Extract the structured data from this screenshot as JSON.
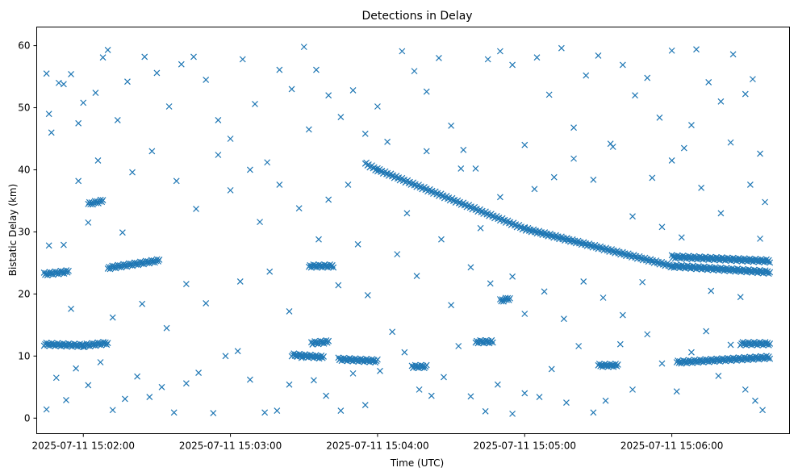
{
  "chart_data": {
    "type": "scatter",
    "title": "Detections in Delay",
    "xlabel": "Time (UTC)",
    "ylabel": "Bistatic Delay (km)",
    "x_type": "time",
    "xlim": [
      "2025-07-11 15:01:41",
      "2025-07-11 15:06:48"
    ],
    "ylim": [
      -2.5,
      63
    ],
    "x_ticks": [
      "2025-07-11 15:02:00",
      "2025-07-11 15:03:00",
      "2025-07-11 15:04:00",
      "2025-07-11 15:05:00",
      "2025-07-11 15:06:00"
    ],
    "y_ticks": [
      0,
      10,
      20,
      30,
      40,
      50,
      60
    ],
    "grid": false,
    "legend": "none",
    "marker": "x",
    "color": "#1f77b4",
    "tracks": [
      {
        "from": [
          "2025-07-11 15:01:44",
          11.9
        ],
        "to": [
          "2025-07-11 15:02:00",
          11.7
        ]
      },
      {
        "from": [
          "2025-07-11 15:02:00",
          11.7
        ],
        "to": [
          "2025-07-11 15:02:10",
          12.1
        ]
      },
      {
        "from": [
          "2025-07-11 15:02:10",
          24.2
        ],
        "to": [
          "2025-07-11 15:02:31",
          25.4
        ]
      },
      {
        "from": [
          "2025-07-11 15:01:44",
          23.2
        ],
        "to": [
          "2025-07-11 15:01:54",
          23.6
        ]
      },
      {
        "from": [
          "2025-07-11 15:02:02",
          34.5
        ],
        "to": [
          "2025-07-11 15:02:08",
          35.0
        ]
      },
      {
        "from": [
          "2025-07-11 15:03:25",
          10.2
        ],
        "to": [
          "2025-07-11 15:03:38",
          9.8
        ]
      },
      {
        "from": [
          "2025-07-11 15:03:33",
          12.1
        ],
        "to": [
          "2025-07-11 15:03:40",
          12.3
        ]
      },
      {
        "from": [
          "2025-07-11 15:03:32",
          24.5
        ],
        "to": [
          "2025-07-11 15:03:42",
          24.5
        ]
      },
      {
        "from": [
          "2025-07-11 15:03:44",
          9.5
        ],
        "to": [
          "2025-07-11 15:04:00",
          9.2
        ]
      },
      {
        "from": [
          "2025-07-11 15:03:55",
          41.0
        ],
        "to": [
          "2025-07-11 15:04:00",
          40.0
        ]
      },
      {
        "from": [
          "2025-07-11 15:04:00",
          40.0
        ],
        "to": [
          "2025-07-11 15:05:00",
          30.5
        ]
      },
      {
        "from": [
          "2025-07-11 15:05:00",
          30.5
        ],
        "to": [
          "2025-07-11 15:06:00",
          24.5
        ]
      },
      {
        "from": [
          "2025-07-11 15:06:00",
          24.5
        ],
        "to": [
          "2025-07-11 15:06:40",
          23.5
        ]
      },
      {
        "from": [
          "2025-07-11 15:06:00",
          26.0
        ],
        "to": [
          "2025-07-11 15:06:40",
          25.3
        ]
      },
      {
        "from": [
          "2025-07-11 15:06:02",
          9.0
        ],
        "to": [
          "2025-07-11 15:06:40",
          9.8
        ]
      },
      {
        "from": [
          "2025-07-11 15:06:28",
          12.0
        ],
        "to": [
          "2025-07-11 15:06:40",
          12.0
        ]
      },
      {
        "from": [
          "2025-07-11 15:04:14",
          8.3
        ],
        "to": [
          "2025-07-11 15:04:20",
          8.3
        ]
      },
      {
        "from": [
          "2025-07-11 15:04:40",
          12.3
        ],
        "to": [
          "2025-07-11 15:04:47",
          12.3
        ]
      },
      {
        "from": [
          "2025-07-11 15:04:50",
          18.9
        ],
        "to": [
          "2025-07-11 15:04:54",
          19.3
        ]
      },
      {
        "from": [
          "2025-07-11 15:05:30",
          8.5
        ],
        "to": [
          "2025-07-11 15:05:38",
          8.5
        ]
      }
    ],
    "scatter_points": [
      [
        "2025-07-11 15:01:45",
        55.5
      ],
      [
        "2025-07-11 15:01:46",
        49.0
      ],
      [
        "2025-07-11 15:01:47",
        46.0
      ],
      [
        "2025-07-11 15:01:50",
        54.0
      ],
      [
        "2025-07-11 15:01:52",
        53.8
      ],
      [
        "2025-07-11 15:01:55",
        55.4
      ],
      [
        "2025-07-11 15:01:58",
        47.5
      ],
      [
        "2025-07-11 15:02:00",
        50.8
      ],
      [
        "2025-07-11 15:02:05",
        52.4
      ],
      [
        "2025-07-11 15:02:08",
        58.1
      ],
      [
        "2025-07-11 15:02:10",
        59.3
      ],
      [
        "2025-07-11 15:02:14",
        48.0
      ],
      [
        "2025-07-11 15:02:18",
        54.2
      ],
      [
        "2025-07-11 15:02:25",
        58.2
      ],
      [
        "2025-07-11 15:02:30",
        55.6
      ],
      [
        "2025-07-11 15:02:35",
        50.2
      ],
      [
        "2025-07-11 15:02:40",
        57.0
      ],
      [
        "2025-07-11 15:02:45",
        58.2
      ],
      [
        "2025-07-11 15:02:50",
        54.5
      ],
      [
        "2025-07-11 15:02:55",
        48.0
      ],
      [
        "2025-07-11 15:03:00",
        45.0
      ],
      [
        "2025-07-11 15:03:05",
        57.8
      ],
      [
        "2025-07-11 15:03:10",
        50.6
      ],
      [
        "2025-07-11 15:03:15",
        41.2
      ],
      [
        "2025-07-11 15:03:20",
        56.1
      ],
      [
        "2025-07-11 15:03:25",
        53.0
      ],
      [
        "2025-07-11 15:03:30",
        59.8
      ],
      [
        "2025-07-11 15:03:35",
        56.1
      ],
      [
        "2025-07-11 15:03:40",
        52.0
      ],
      [
        "2025-07-11 15:03:45",
        48.5
      ],
      [
        "2025-07-11 15:03:50",
        52.8
      ],
      [
        "2025-07-11 15:03:55",
        45.8
      ],
      [
        "2025-07-11 15:04:00",
        50.2
      ],
      [
        "2025-07-11 15:04:10",
        59.1
      ],
      [
        "2025-07-11 15:04:15",
        55.9
      ],
      [
        "2025-07-11 15:04:20",
        52.6
      ],
      [
        "2025-07-11 15:04:25",
        58.0
      ],
      [
        "2025-07-11 15:04:30",
        47.1
      ],
      [
        "2025-07-11 15:04:35",
        43.2
      ],
      [
        "2025-07-11 15:04:40",
        40.2
      ],
      [
        "2025-07-11 15:04:45",
        57.8
      ],
      [
        "2025-07-11 15:04:50",
        59.1
      ],
      [
        "2025-07-11 15:04:55",
        56.9
      ],
      [
        "2025-07-11 15:05:00",
        44.0
      ],
      [
        "2025-07-11 15:05:05",
        58.1
      ],
      [
        "2025-07-11 15:05:10",
        52.1
      ],
      [
        "2025-07-11 15:05:15",
        59.6
      ],
      [
        "2025-07-11 15:05:20",
        46.8
      ],
      [
        "2025-07-11 15:05:25",
        55.2
      ],
      [
        "2025-07-11 15:05:30",
        58.4
      ],
      [
        "2025-07-11 15:05:35",
        44.2
      ],
      [
        "2025-07-11 15:05:40",
        56.9
      ],
      [
        "2025-07-11 15:05:45",
        52.0
      ],
      [
        "2025-07-11 15:05:50",
        54.8
      ],
      [
        "2025-07-11 15:05:55",
        48.4
      ],
      [
        "2025-07-11 15:06:00",
        59.2
      ],
      [
        "2025-07-11 15:06:05",
        43.5
      ],
      [
        "2025-07-11 15:06:10",
        59.4
      ],
      [
        "2025-07-11 15:06:15",
        54.1
      ],
      [
        "2025-07-11 15:06:20",
        51.0
      ],
      [
        "2025-07-11 15:06:25",
        58.6
      ],
      [
        "2025-07-11 15:06:30",
        52.2
      ],
      [
        "2025-07-11 15:06:33",
        54.6
      ],
      [
        "2025-07-11 15:06:36",
        42.6
      ],
      [
        "2025-07-11 15:06:38",
        34.8
      ],
      [
        "2025-07-11 15:01:46",
        27.8
      ],
      [
        "2025-07-11 15:01:52",
        27.9
      ],
      [
        "2025-07-11 15:01:55",
        17.6
      ],
      [
        "2025-07-11 15:01:58",
        38.2
      ],
      [
        "2025-07-11 15:02:02",
        31.5
      ],
      [
        "2025-07-11 15:02:06",
        41.5
      ],
      [
        "2025-07-11 15:02:12",
        16.2
      ],
      [
        "2025-07-11 15:02:16",
        29.9
      ],
      [
        "2025-07-11 15:02:20",
        39.6
      ],
      [
        "2025-07-11 15:02:24",
        18.4
      ],
      [
        "2025-07-11 15:02:28",
        43.0
      ],
      [
        "2025-07-11 15:02:34",
        14.5
      ],
      [
        "2025-07-11 15:02:38",
        38.2
      ],
      [
        "2025-07-11 15:02:42",
        21.6
      ],
      [
        "2025-07-11 15:02:46",
        33.7
      ],
      [
        "2025-07-11 15:02:50",
        18.5
      ],
      [
        "2025-07-11 15:02:55",
        42.4
      ],
      [
        "2025-07-11 15:03:00",
        36.7
      ],
      [
        "2025-07-11 15:03:04",
        22.0
      ],
      [
        "2025-07-11 15:03:08",
        40.0
      ],
      [
        "2025-07-11 15:03:12",
        31.6
      ],
      [
        "2025-07-11 15:03:16",
        23.6
      ],
      [
        "2025-07-11 15:03:20",
        37.6
      ],
      [
        "2025-07-11 15:03:24",
        17.2
      ],
      [
        "2025-07-11 15:03:28",
        33.8
      ],
      [
        "2025-07-11 15:03:32",
        46.5
      ],
      [
        "2025-07-11 15:03:36",
        28.8
      ],
      [
        "2025-07-11 15:03:40",
        35.2
      ],
      [
        "2025-07-11 15:03:44",
        21.4
      ],
      [
        "2025-07-11 15:03:48",
        37.6
      ],
      [
        "2025-07-11 15:03:52",
        28.0
      ],
      [
        "2025-07-11 15:03:56",
        19.8
      ],
      [
        "2025-07-11 15:04:04",
        44.5
      ],
      [
        "2025-07-11 15:04:08",
        26.4
      ],
      [
        "2025-07-11 15:04:12",
        33.0
      ],
      [
        "2025-07-11 15:04:16",
        22.9
      ],
      [
        "2025-07-11 15:04:20",
        43.0
      ],
      [
        "2025-07-11 15:04:26",
        28.8
      ],
      [
        "2025-07-11 15:04:30",
        18.2
      ],
      [
        "2025-07-11 15:04:34",
        40.2
      ],
      [
        "2025-07-11 15:04:38",
        24.3
      ],
      [
        "2025-07-11 15:04:42",
        30.6
      ],
      [
        "2025-07-11 15:04:46",
        21.7
      ],
      [
        "2025-07-11 15:04:50",
        35.6
      ],
      [
        "2025-07-11 15:04:55",
        22.8
      ],
      [
        "2025-07-11 15:05:00",
        16.8
      ],
      [
        "2025-07-11 15:05:04",
        36.9
      ],
      [
        "2025-07-11 15:05:08",
        20.4
      ],
      [
        "2025-07-11 15:05:12",
        38.8
      ],
      [
        "2025-07-11 15:05:16",
        16.0
      ],
      [
        "2025-07-11 15:05:20",
        41.8
      ],
      [
        "2025-07-11 15:05:24",
        22.0
      ],
      [
        "2025-07-11 15:05:28",
        38.4
      ],
      [
        "2025-07-11 15:05:32",
        19.4
      ],
      [
        "2025-07-11 15:05:36",
        43.7
      ],
      [
        "2025-07-11 15:05:40",
        16.6
      ],
      [
        "2025-07-11 15:05:44",
        32.5
      ],
      [
        "2025-07-11 15:05:48",
        21.9
      ],
      [
        "2025-07-11 15:05:52",
        38.7
      ],
      [
        "2025-07-11 15:05:56",
        30.8
      ],
      [
        "2025-07-11 15:06:00",
        41.5
      ],
      [
        "2025-07-11 15:06:04",
        29.1
      ],
      [
        "2025-07-11 15:06:08",
        47.2
      ],
      [
        "2025-07-11 15:06:12",
        37.1
      ],
      [
        "2025-07-11 15:06:16",
        20.5
      ],
      [
        "2025-07-11 15:06:20",
        33.0
      ],
      [
        "2025-07-11 15:06:24",
        44.4
      ],
      [
        "2025-07-11 15:06:28",
        19.5
      ],
      [
        "2025-07-11 15:06:32",
        37.6
      ],
      [
        "2025-07-11 15:06:36",
        28.9
      ],
      [
        "2025-07-11 15:01:45",
        1.4
      ],
      [
        "2025-07-11 15:01:49",
        6.5
      ],
      [
        "2025-07-11 15:01:53",
        2.9
      ],
      [
        "2025-07-11 15:01:57",
        8.0
      ],
      [
        "2025-07-11 15:02:02",
        5.3
      ],
      [
        "2025-07-11 15:02:07",
        9.0
      ],
      [
        "2025-07-11 15:02:12",
        1.3
      ],
      [
        "2025-07-11 15:02:17",
        3.1
      ],
      [
        "2025-07-11 15:02:22",
        6.7
      ],
      [
        "2025-07-11 15:02:27",
        3.4
      ],
      [
        "2025-07-11 15:02:32",
        5.0
      ],
      [
        "2025-07-11 15:02:37",
        0.9
      ],
      [
        "2025-07-11 15:02:42",
        5.6
      ],
      [
        "2025-07-11 15:02:47",
        7.3
      ],
      [
        "2025-07-11 15:02:53",
        0.8
      ],
      [
        "2025-07-11 15:02:58",
        10.0
      ],
      [
        "2025-07-11 15:03:03",
        10.8
      ],
      [
        "2025-07-11 15:03:08",
        6.2
      ],
      [
        "2025-07-11 15:03:14",
        0.9
      ],
      [
        "2025-07-11 15:03:19",
        1.2
      ],
      [
        "2025-07-11 15:03:24",
        5.4
      ],
      [
        "2025-07-11 15:03:29",
        9.7
      ],
      [
        "2025-07-11 15:03:34",
        6.1
      ],
      [
        "2025-07-11 15:03:39",
        3.6
      ],
      [
        "2025-07-11 15:03:45",
        1.2
      ],
      [
        "2025-07-11 15:03:50",
        7.2
      ],
      [
        "2025-07-11 15:03:55",
        2.1
      ],
      [
        "2025-07-11 15:04:01",
        7.6
      ],
      [
        "2025-07-11 15:04:06",
        13.9
      ],
      [
        "2025-07-11 15:04:11",
        10.6
      ],
      [
        "2025-07-11 15:04:17",
        4.6
      ],
      [
        "2025-07-11 15:04:22",
        3.6
      ],
      [
        "2025-07-11 15:04:27",
        6.6
      ],
      [
        "2025-07-11 15:04:33",
        11.6
      ],
      [
        "2025-07-11 15:04:38",
        3.5
      ],
      [
        "2025-07-11 15:04:44",
        1.1
      ],
      [
        "2025-07-11 15:04:49",
        5.4
      ],
      [
        "2025-07-11 15:04:55",
        0.7
      ],
      [
        "2025-07-11 15:05:00",
        4.0
      ],
      [
        "2025-07-11 15:05:06",
        3.4
      ],
      [
        "2025-07-11 15:05:11",
        7.9
      ],
      [
        "2025-07-11 15:05:17",
        2.5
      ],
      [
        "2025-07-11 15:05:22",
        11.6
      ],
      [
        "2025-07-11 15:05:28",
        0.9
      ],
      [
        "2025-07-11 15:05:33",
        2.8
      ],
      [
        "2025-07-11 15:05:39",
        11.9
      ],
      [
        "2025-07-11 15:05:44",
        4.6
      ],
      [
        "2025-07-11 15:05:50",
        13.5
      ],
      [
        "2025-07-11 15:05:56",
        8.8
      ],
      [
        "2025-07-11 15:06:02",
        4.3
      ],
      [
        "2025-07-11 15:06:08",
        10.6
      ],
      [
        "2025-07-11 15:06:14",
        14.0
      ],
      [
        "2025-07-11 15:06:19",
        6.8
      ],
      [
        "2025-07-11 15:06:24",
        11.8
      ],
      [
        "2025-07-11 15:06:30",
        4.6
      ],
      [
        "2025-07-11 15:06:34",
        2.8
      ],
      [
        "2025-07-11 15:06:37",
        1.3
      ]
    ]
  }
}
